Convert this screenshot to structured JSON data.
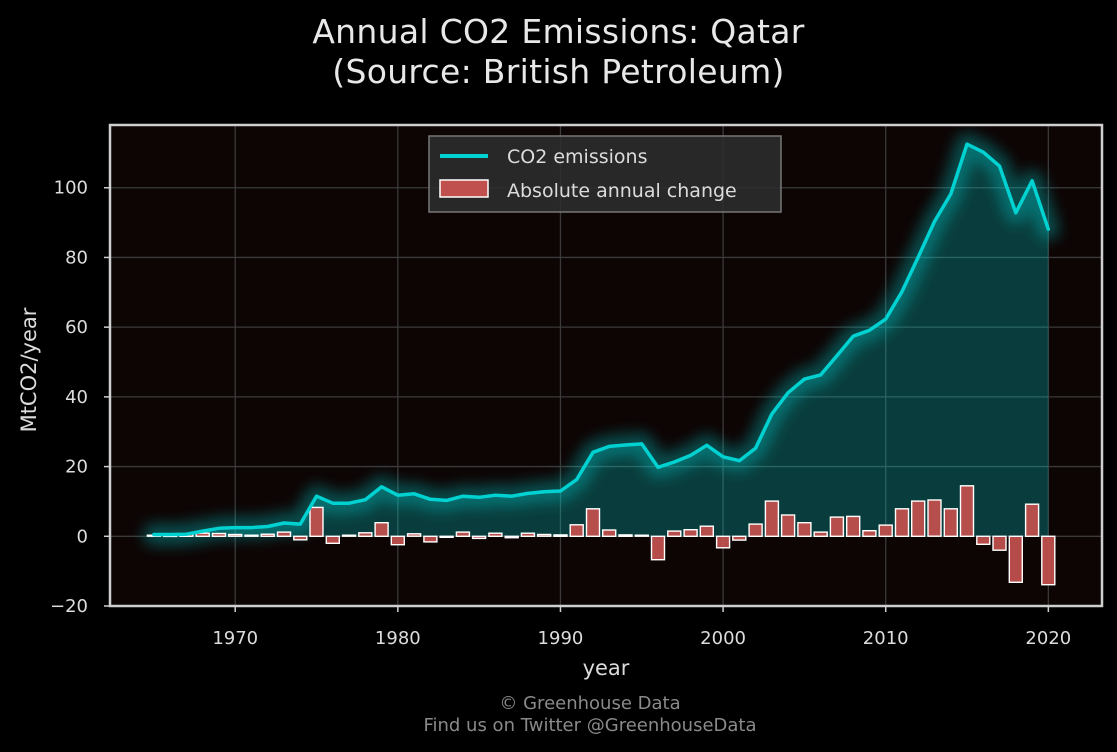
{
  "chart_data": {
    "type": "line",
    "title": "Annual CO2 Emissions: Qatar",
    "subtitle": "(Source: British Petroleum)",
    "xlabel": "year",
    "ylabel": "MtCO2/year",
    "xlim": [
      1962.3,
      2023.3
    ],
    "ylim": [
      -20,
      118
    ],
    "xticks": [
      1970,
      1980,
      1990,
      2000,
      2010,
      2020
    ],
    "yticks": [
      -20,
      0,
      20,
      40,
      60,
      80,
      100
    ],
    "x": [
      1965,
      1966,
      1967,
      1968,
      1969,
      1970,
      1971,
      1972,
      1973,
      1974,
      1975,
      1976,
      1977,
      1978,
      1979,
      1980,
      1981,
      1982,
      1983,
      1984,
      1985,
      1986,
      1987,
      1988,
      1989,
      1990,
      1991,
      1992,
      1993,
      1994,
      1995,
      1996,
      1997,
      1998,
      1999,
      2000,
      2001,
      2002,
      2003,
      2004,
      2005,
      2006,
      2007,
      2008,
      2009,
      2010,
      2011,
      2012,
      2013,
      2014,
      2015,
      2016,
      2017,
      2018,
      2019,
      2020
    ],
    "series": [
      {
        "name": "CO2 emissions",
        "type": "line",
        "color": "#00d2d2",
        "values": [
          0.5,
          0.5,
          0.6,
          1.5,
          2.3,
          2.5,
          2.5,
          2.8,
          3.8,
          3.5,
          11.5,
          9.5,
          9.5,
          10.5,
          14.2,
          11.8,
          12.2,
          10.6,
          10.3,
          11.5,
          11.2,
          11.8,
          11.5,
          12.3,
          12.8,
          13.0,
          16.3,
          24.1,
          25.8,
          26.2,
          26.5,
          19.8,
          21.3,
          23.2,
          26.1,
          22.8,
          21.7,
          25.3,
          35.1,
          41.2,
          45.1,
          46.3,
          51.8,
          57.4,
          59.1,
          62.3,
          70.2,
          80.1,
          90.3,
          98.2,
          112.5,
          110.2,
          106.2,
          92.8,
          102.0,
          88.1
        ]
      },
      {
        "name": "Absolute annual change",
        "type": "bar",
        "color": "#c0504d",
        "values": [
          0.3,
          0.2,
          0.6,
          0.9,
          0.8,
          0.5,
          0.3,
          0.6,
          1.2,
          -1.0,
          8.3,
          -2.0,
          0.3,
          1.0,
          3.9,
          -2.4,
          0.7,
          -1.6,
          -0.3,
          1.2,
          -0.6,
          0.9,
          -0.4,
          0.9,
          0.5,
          0.4,
          3.3,
          7.9,
          1.8,
          0.4,
          0.3,
          -6.7,
          1.5,
          1.9,
          2.9,
          -3.3,
          -1.1,
          3.5,
          10.1,
          6.1,
          3.9,
          1.2,
          5.5,
          5.7,
          1.6,
          3.2,
          7.9,
          10.1,
          10.4,
          7.9,
          14.5,
          -2.3,
          -4.0,
          -13.2,
          9.2,
          -13.9
        ]
      }
    ],
    "grid": true,
    "legend": "top-center",
    "colors": {
      "background": "#000000",
      "plot_background": "#0d0404",
      "line": "#00d2d2",
      "bar": "#c0504d",
      "grid": "#3a3a3a"
    }
  },
  "footer": {
    "credit": "© Greenhouse Data",
    "twitter": "Find us on Twitter @GreenhouseData"
  }
}
